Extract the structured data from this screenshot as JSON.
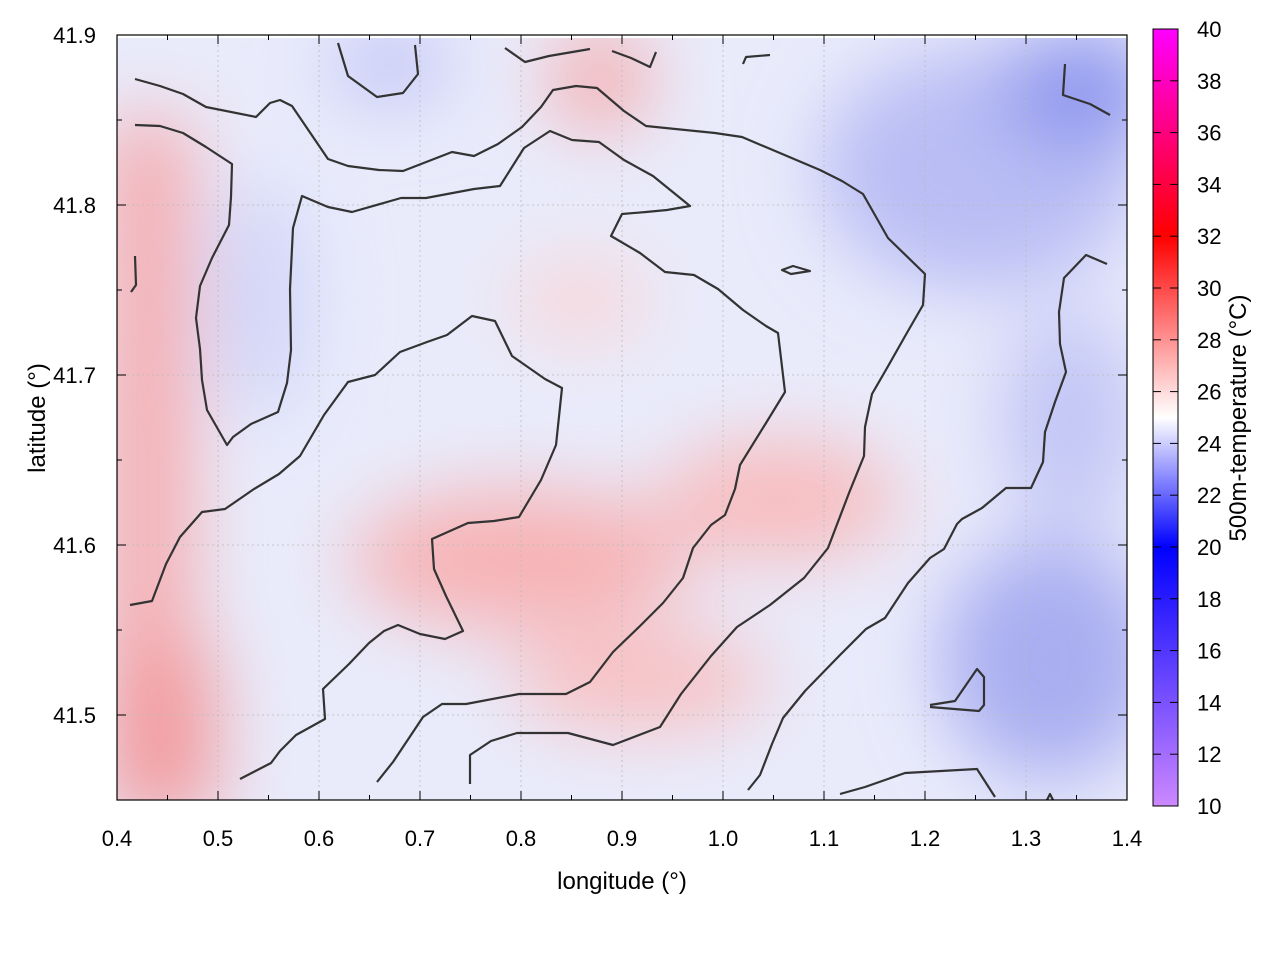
{
  "chart_data": {
    "type": "heatmap",
    "title": "",
    "xlabel": "longitude (°)",
    "ylabel": "latitude (°)",
    "colorbar_label": "500m-temperature (°C)",
    "xlim": [
      0.4,
      1.4
    ],
    "ylim": [
      41.45,
      41.9
    ],
    "x_ticks": [
      "0.4",
      "0.5",
      "0.6",
      "0.7",
      "0.8",
      "0.9",
      "1.0",
      "1.1",
      "1.2",
      "1.3",
      "1.4"
    ],
    "y_ticks": [
      "41.5",
      "41.6",
      "41.7",
      "41.8",
      "41.9"
    ],
    "colorbar_range": [
      10,
      40
    ],
    "colorbar_ticks": [
      "10",
      "12",
      "14",
      "16",
      "18",
      "20",
      "22",
      "24",
      "26",
      "28",
      "30",
      "32",
      "34",
      "36",
      "38",
      "40"
    ],
    "colormap": [
      "#cc88ff",
      "#0000ff",
      "#ffffff",
      "#ff0000",
      "#ff00ff"
    ],
    "grid": true,
    "contour_levels_celsius": [
      24
    ],
    "field_samples": [
      {
        "lon": 0.42,
        "lat": 41.47,
        "temp": 27.0
      },
      {
        "lon": 0.43,
        "lat": 41.78,
        "temp": 26.5
      },
      {
        "lon": 0.78,
        "lat": 41.58,
        "temp": 26.0
      },
      {
        "lon": 1.05,
        "lat": 41.62,
        "temp": 26.0
      },
      {
        "lon": 0.88,
        "lat": 41.88,
        "temp": 26.5
      },
      {
        "lon": 1.37,
        "lat": 41.87,
        "temp": 21.5
      },
      {
        "lon": 1.33,
        "lat": 41.5,
        "temp": 21.8
      },
      {
        "lon": 1.2,
        "lat": 41.8,
        "temp": 22.5
      }
    ]
  }
}
